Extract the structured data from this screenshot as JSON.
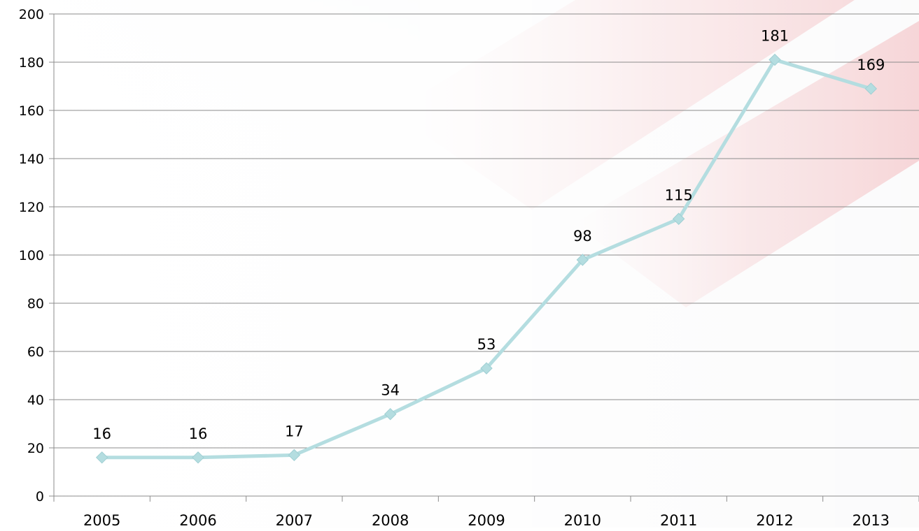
{
  "chart_data": {
    "type": "line",
    "title": "",
    "xlabel": "",
    "ylabel": "",
    "categories": [
      "2005",
      "2006",
      "2007",
      "2008",
      "2009",
      "2010",
      "2011",
      "2012",
      "2013"
    ],
    "series": [
      {
        "values": [
          16,
          16,
          17,
          34,
          53,
          98,
          115,
          181,
          169
        ]
      }
    ],
    "ylim": [
      0,
      200
    ],
    "yticks": [
      0,
      20,
      40,
      60,
      80,
      100,
      120,
      140,
      160,
      180,
      200
    ],
    "grid": "horizontal",
    "legend": "none",
    "marker": "diamond",
    "data_labels": "above"
  },
  "colors": {
    "line": "#b4dde0",
    "marker": "#b4dde0",
    "gridline": "#8c8c8c",
    "axis": "#8c8c8c",
    "text": "#000000",
    "background_stripe": "#e8888e"
  }
}
